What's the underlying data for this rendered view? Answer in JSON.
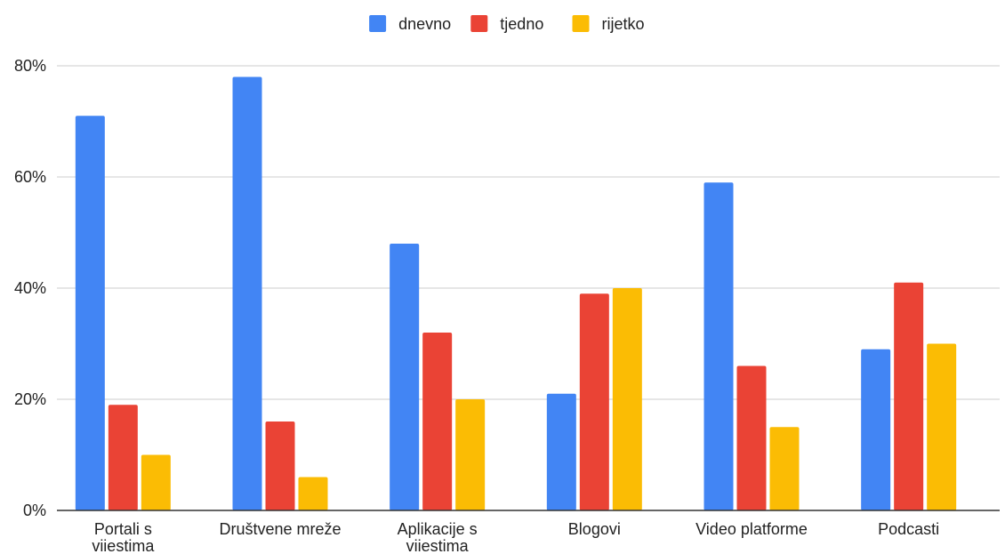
{
  "chart_data": {
    "type": "bar",
    "title": "",
    "xlabel": "",
    "ylabel": "",
    "ylim": [
      0,
      80
    ],
    "y_ticks": [
      0,
      20,
      40,
      60,
      80
    ],
    "y_tick_format": "percent",
    "grid": true,
    "legend_position": "top-center",
    "categories": [
      [
        "Portali s",
        "viiestima"
      ],
      [
        "Društvene mreže"
      ],
      [
        "Aplikacije s",
        "viiestima"
      ],
      [
        "Blogovi"
      ],
      [
        "Video platforme"
      ],
      [
        "Podcasti"
      ]
    ],
    "series": [
      {
        "name": "dnevno",
        "color": "#4285F4",
        "values": [
          71,
          78,
          48,
          21,
          59,
          29
        ]
      },
      {
        "name": "tjedno",
        "color": "#EA4335",
        "values": [
          19,
          16,
          32,
          39,
          26,
          41
        ]
      },
      {
        "name": "rijetko",
        "color": "#FBBC04",
        "values": [
          10,
          6,
          20,
          40,
          15,
          30
        ]
      }
    ],
    "colors": {
      "grid": "#cccccc",
      "axis": "#333333",
      "text": "#222222"
    }
  }
}
